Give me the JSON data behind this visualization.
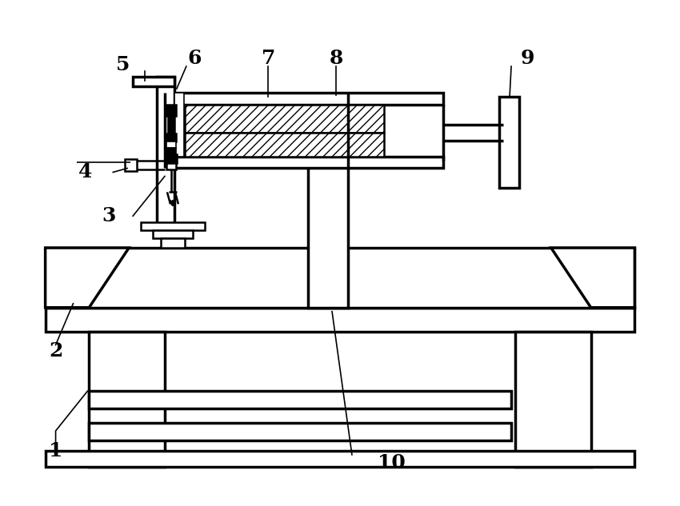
{
  "bg_color": "#ffffff",
  "lw_thick": 2.5,
  "lw_medium": 1.8,
  "lw_thin": 1.2,
  "fig_width": 8.5,
  "fig_height": 6.33,
  "label_fontsize": 18
}
